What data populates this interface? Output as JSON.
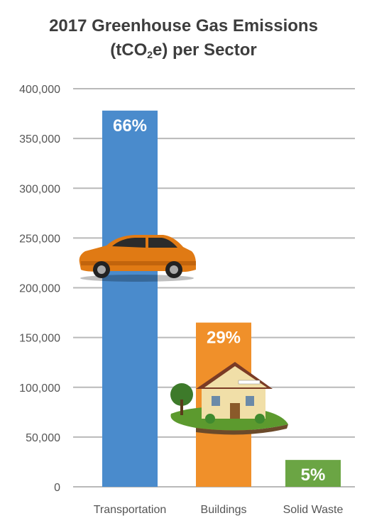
{
  "title": {
    "line1": "2017 Greenhouse Gas Emissions",
    "line2_pre": "(tCO",
    "line2_sub": "2",
    "line2_post": "e) per Sector"
  },
  "colors": {
    "grid": "#b9b9b9",
    "bars": [
      "#4a8bcc",
      "#f0902a",
      "#6ba544"
    ]
  },
  "icons": [
    "car-image",
    "house-image"
  ],
  "chart_data": {
    "type": "bar",
    "title": "2017 Greenhouse Gas Emissions (tCO2e) per Sector",
    "xlabel": "",
    "ylabel": "",
    "categories": [
      "Transportation",
      "Buildings",
      "Solid Waste"
    ],
    "values": [
      378000,
      165000,
      27000
    ],
    "data_labels": [
      "66%",
      "29%",
      "5%"
    ],
    "ylim": [
      0,
      400000
    ],
    "yticks": [
      0,
      50000,
      100000,
      150000,
      200000,
      250000,
      300000,
      350000,
      400000
    ],
    "ytick_labels": [
      "0",
      "50,000",
      "100,000",
      "150,000",
      "200,000",
      "250,000",
      "300,000",
      "350,000",
      "400,000"
    ],
    "grid": true,
    "legend": "none"
  }
}
